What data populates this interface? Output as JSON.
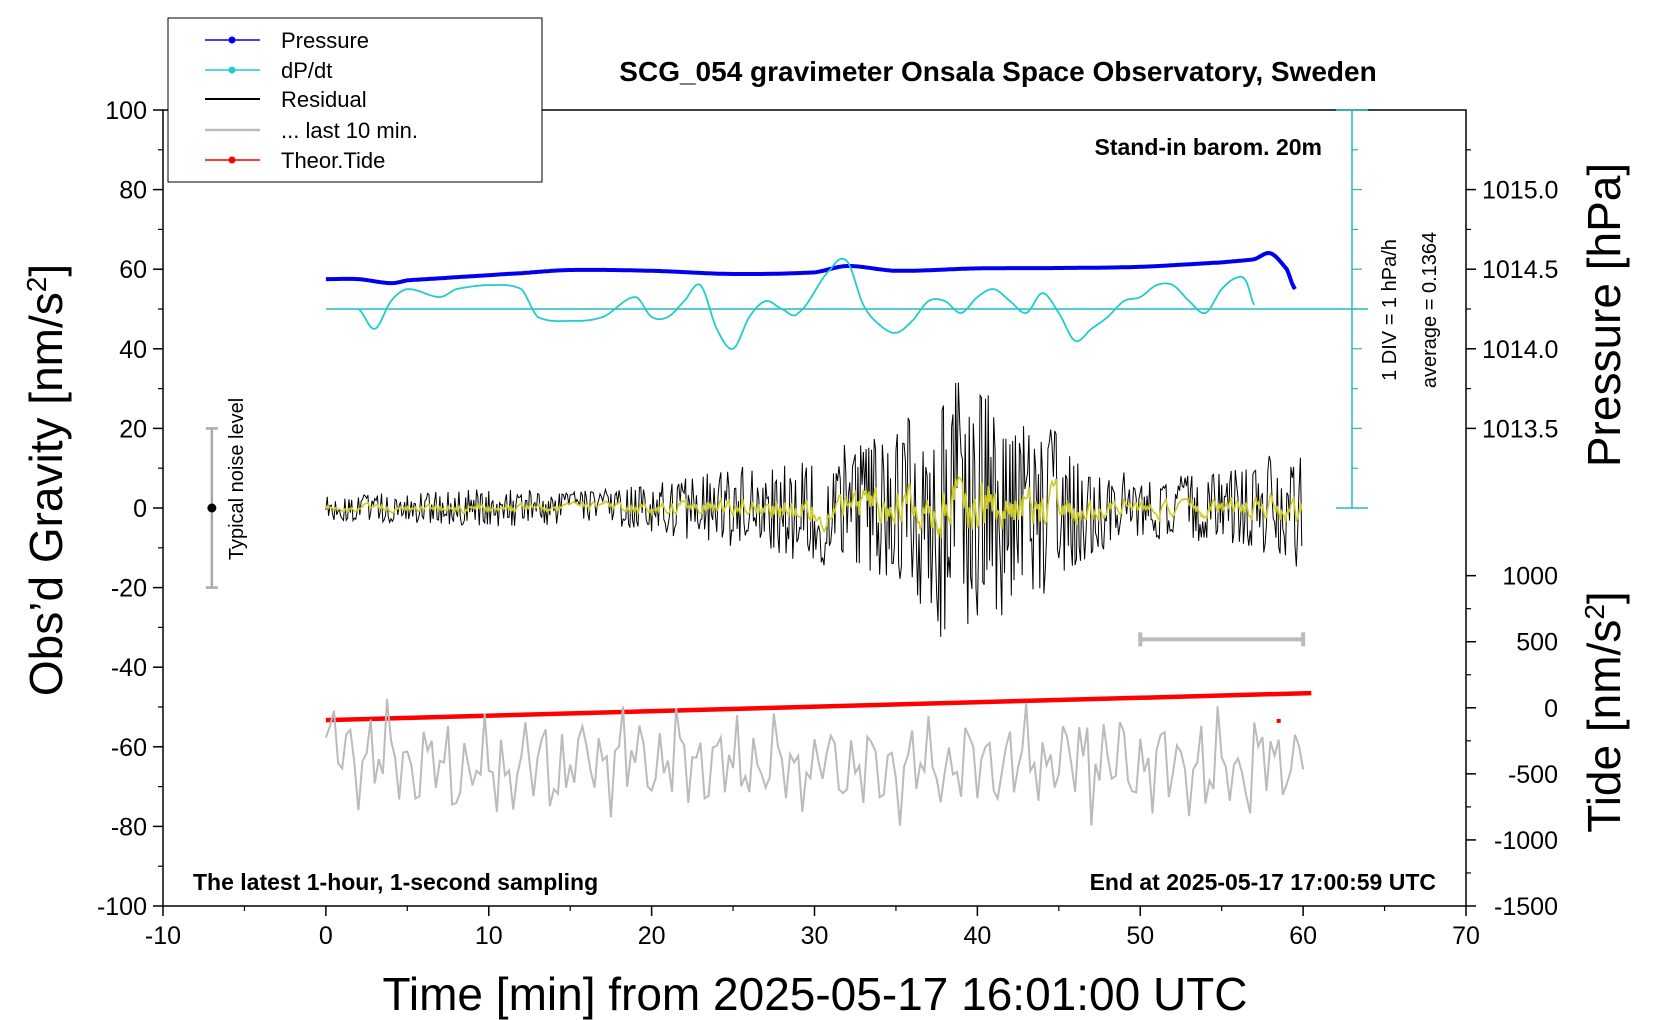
{
  "chart_data": {
    "type": "line",
    "title": "SCG_054 gravimeter Onsala Space Observatory, Sweden",
    "xlabel": "Time [min] from 2025-05-17 16:01:00 UTC",
    "ylabel_left_text": "Obs’d Gravity [nm/s",
    "ylabel_left_sup": "2",
    "ylabel_left_close": "]",
    "ylabel_pressure": "Pressure [hPa]",
    "ylabel_tide_text": "Tide [nm/s",
    "ylabel_tide_sup": "2",
    "ylabel_tide_close": "]",
    "xlim": [
      -10,
      70
    ],
    "ylim": [
      -100,
      100
    ],
    "x_ticks": [
      -10,
      0,
      10,
      20,
      30,
      40,
      50,
      60,
      70
    ],
    "x_tick_labels": [
      "-10",
      "0",
      "10",
      "20",
      "30",
      "40",
      "50",
      "60",
      "70"
    ],
    "y_ticks": [
      -100,
      -80,
      -60,
      -40,
      -20,
      0,
      20,
      40,
      60,
      80,
      100
    ],
    "y_tick_labels": [
      "-100",
      "-80",
      "-60",
      "-40",
      "-20",
      "0",
      "20",
      "40",
      "60",
      "80",
      "100"
    ],
    "pressure_ticks": [
      1013.5,
      1014.0,
      1014.5,
      1015.0
    ],
    "pressure_tick_labels": [
      "1013.5",
      "1014.0",
      "1014.5",
      "1015.0"
    ],
    "pressure_ref": {
      "gravity": 60,
      "hpa": 1014.5,
      "hpa_per_20nm": 0.5
    },
    "tide_ticks": [
      1000,
      500,
      0,
      -500,
      -1000,
      -1500
    ],
    "tide_tick_labels": [
      "1000",
      "500",
      "0",
      "-500",
      "-1000",
      "-1500"
    ],
    "tide_axis_ylim": [
      -1500,
      1000
    ],
    "tide_axis_span_gravity": [
      -100,
      -17
    ],
    "annotations": {
      "stand_in": "Stand-in barom. 20m",
      "latest": "The latest 1-hour, 1-second sampling",
      "end_at": "End at 2025-05-17 17:00:59 UTC",
      "div_label": "1 DIV = 1 hPa/h",
      "average_label": "average = 0.1364",
      "noise_label": "Typical noise level"
    },
    "legend": [
      {
        "label": "Pressure",
        "color": "#0000ee",
        "marker": true
      },
      {
        "label": "dP/dt",
        "color": "#22cccc",
        "marker": true
      },
      {
        "label": "Residual",
        "color": "#000000",
        "marker": false
      },
      {
        "label": "... last 10 min.",
        "color": "#bbbbbb",
        "marker": false
      },
      {
        "label": "Theor.Tide",
        "color": "#ff0000",
        "marker": true
      }
    ],
    "colors": {
      "pressure": "#0000ee",
      "dpdt": "#22cccc",
      "residual": "#000000",
      "smoothed": "#cccc22",
      "last10": "#bbbbbb",
      "tide": "#ff0000",
      "dpdt_axis": "#22bbbb"
    },
    "series": [
      {
        "name": "Pressure",
        "x": [
          0,
          2,
          4,
          5,
          8,
          12,
          15,
          20,
          25,
          30,
          32,
          35,
          40,
          45,
          50,
          55,
          57,
          58,
          59,
          59.5
        ],
        "y": [
          57.5,
          57.5,
          56.5,
          57.2,
          58,
          59,
          59.8,
          59.6,
          58.8,
          59.2,
          60.8,
          59.6,
          60.2,
          60.3,
          60.6,
          61.7,
          62.5,
          64,
          60,
          55
        ]
      },
      {
        "name": "dP/dt",
        "x": [
          2,
          3,
          4,
          5,
          7,
          8,
          10,
          12,
          13,
          15,
          17,
          19,
          20,
          21,
          22,
          23,
          24,
          25,
          26,
          27,
          28,
          29,
          31,
          32,
          33,
          34,
          35,
          36,
          37,
          38,
          39,
          40,
          41,
          42,
          43,
          44,
          45,
          46,
          47,
          48,
          49,
          50,
          51,
          52,
          53,
          54,
          55,
          56,
          56.5,
          57
        ],
        "y": [
          50,
          45,
          52,
          55,
          53,
          55,
          56,
          55,
          48,
          47,
          48,
          53,
          48,
          48,
          52,
          56,
          45,
          40,
          48,
          52,
          50,
          49,
          60,
          62,
          51,
          46,
          44,
          47,
          52,
          52,
          49,
          53,
          55,
          52,
          49,
          54,
          49,
          42,
          45,
          48,
          52,
          53,
          56,
          56,
          52,
          49,
          55,
          58,
          57,
          51
        ]
      },
      {
        "name": "Residual",
        "x": [
          0,
          5,
          10,
          15,
          20,
          25,
          30,
          35,
          37,
          38,
          38.5,
          40,
          42,
          44,
          46,
          48,
          50,
          52,
          55,
          58,
          60
        ],
        "amplitude": [
          3,
          4,
          5,
          4,
          6,
          10,
          14,
          20,
          28,
          38,
          32,
          30,
          26,
          22,
          15,
          10,
          8,
          8,
          9,
          14,
          16
        ]
      },
      {
        "name": "... last 10 min.",
        "x": [
          0,
          5,
          10,
          15,
          20,
          25,
          30,
          35,
          40,
          45,
          50,
          55,
          60
        ],
        "y": [
          -61,
          -64,
          -66,
          -64,
          -63,
          -64,
          -66,
          -65,
          -64,
          -63,
          -64,
          -66,
          -63
        ]
      },
      {
        "name": "Theor.Tide",
        "x": [
          0,
          60.5
        ],
        "y": [
          -53.3,
          -46.5
        ]
      }
    ],
    "noise_bar": {
      "x": -7,
      "y_low": -20,
      "y_high": 20,
      "center": 0
    },
    "last10_marker": {
      "x1": 50,
      "x2": 60,
      "y": -33
    },
    "dpdt_axis": {
      "x": 63,
      "baseline": 50,
      "y_low": 0,
      "y_high": 100,
      "major_step": 20,
      "minor_step": 10
    },
    "red_point": {
      "x": 58.5,
      "y": -53.5
    }
  }
}
